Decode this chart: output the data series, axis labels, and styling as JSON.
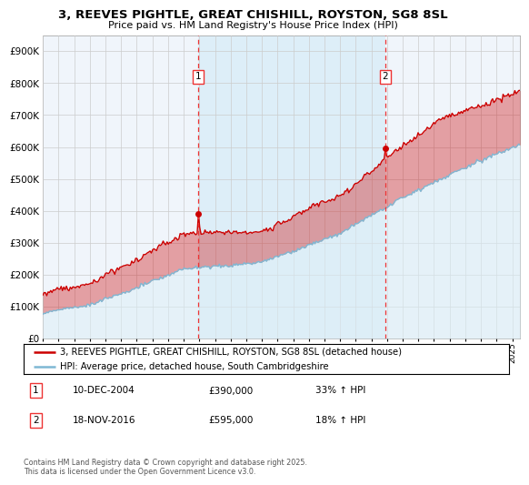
{
  "title": "3, REEVES PIGHTLE, GREAT CHISHILL, ROYSTON, SG8 8SL",
  "subtitle": "Price paid vs. HM Land Registry's House Price Index (HPI)",
  "legend_line1": "3, REEVES PIGHTLE, GREAT CHISHILL, ROYSTON, SG8 8SL (detached house)",
  "legend_line2": "HPI: Average price, detached house, South Cambridgeshire",
  "annotation1_date": "10-DEC-2004",
  "annotation1_price": "£390,000",
  "annotation1_hpi": "33% ↑ HPI",
  "annotation2_date": "18-NOV-2016",
  "annotation2_price": "£595,000",
  "annotation2_hpi": "18% ↑ HPI",
  "footer": "Contains HM Land Registry data © Crown copyright and database right 2025.\nThis data is licensed under the Open Government Licence v3.0.",
  "red_color": "#cc0000",
  "blue_color": "#7eb8d4",
  "blue_fill_color": "#ddeef7",
  "vline_color": "#ee3333",
  "bg_color": "#f0f5fb",
  "highlight_color": "#ddeef8",
  "ylim": [
    0,
    950000
  ],
  "yticks": [
    0,
    100000,
    200000,
    300000,
    400000,
    500000,
    600000,
    700000,
    800000,
    900000
  ],
  "sale1_year": 2004.92,
  "sale1_price": 390000,
  "sale2_year": 2016.88,
  "sale2_price": 595000,
  "xmin": 1995,
  "xmax": 2025.5
}
